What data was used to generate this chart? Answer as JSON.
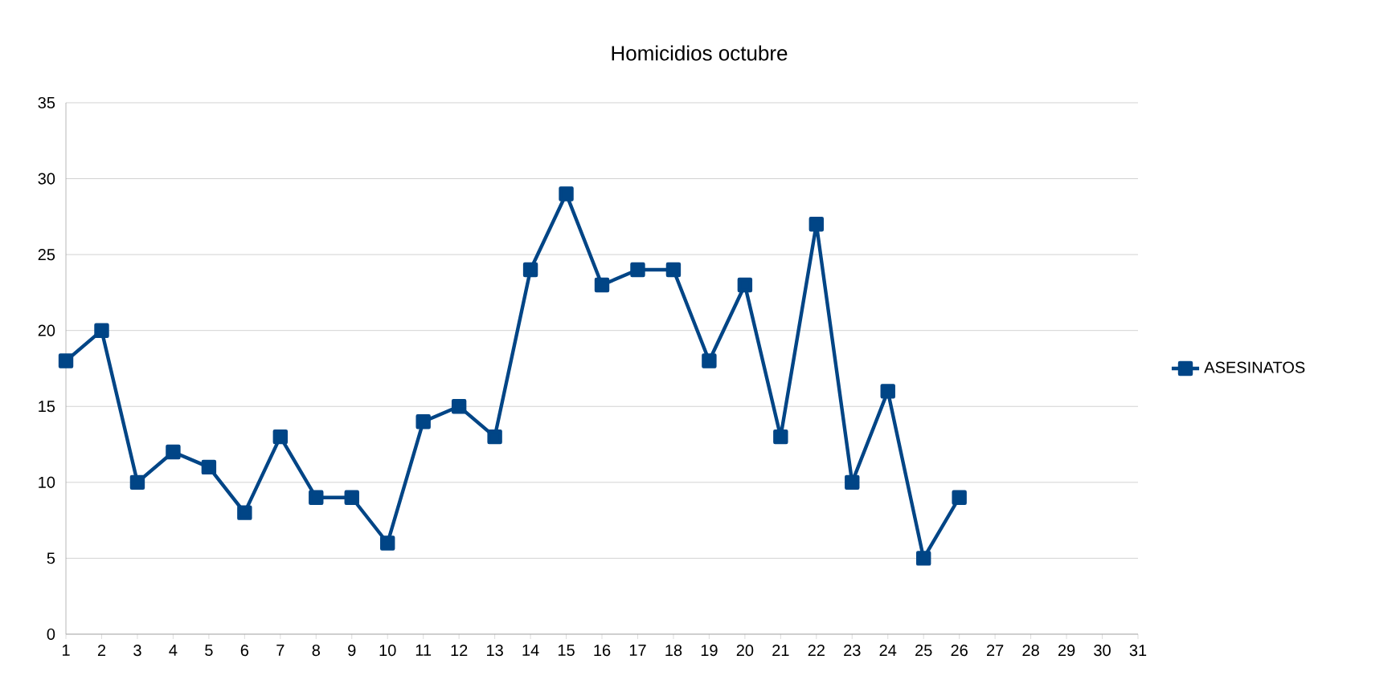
{
  "chart_data": {
    "type": "line",
    "title": "Homicidios octubre",
    "x": [
      1,
      2,
      3,
      4,
      5,
      6,
      7,
      8,
      9,
      10,
      11,
      12,
      13,
      14,
      15,
      16,
      17,
      18,
      19,
      20,
      21,
      22,
      23,
      24,
      25,
      26
    ],
    "xlim": [
      1,
      31
    ],
    "xticks": [
      1,
      2,
      3,
      4,
      5,
      6,
      7,
      8,
      9,
      10,
      11,
      12,
      13,
      14,
      15,
      16,
      17,
      18,
      19,
      20,
      21,
      22,
      23,
      24,
      25,
      26,
      27,
      28,
      29,
      30,
      31
    ],
    "ylim": [
      0,
      35
    ],
    "yticks": [
      0,
      5,
      10,
      15,
      20,
      25,
      30,
      35
    ],
    "grid": "y",
    "legend": "right",
    "marker": "square",
    "line_style": "solid",
    "series": [
      {
        "name": "ASESINATOS",
        "color": "#004586",
        "values": [
          18,
          20,
          10,
          12,
          11,
          8,
          13,
          9,
          9,
          6,
          14,
          15,
          13,
          24,
          29,
          23,
          24,
          24,
          18,
          23,
          13,
          27,
          10,
          16,
          5,
          9
        ]
      }
    ]
  }
}
